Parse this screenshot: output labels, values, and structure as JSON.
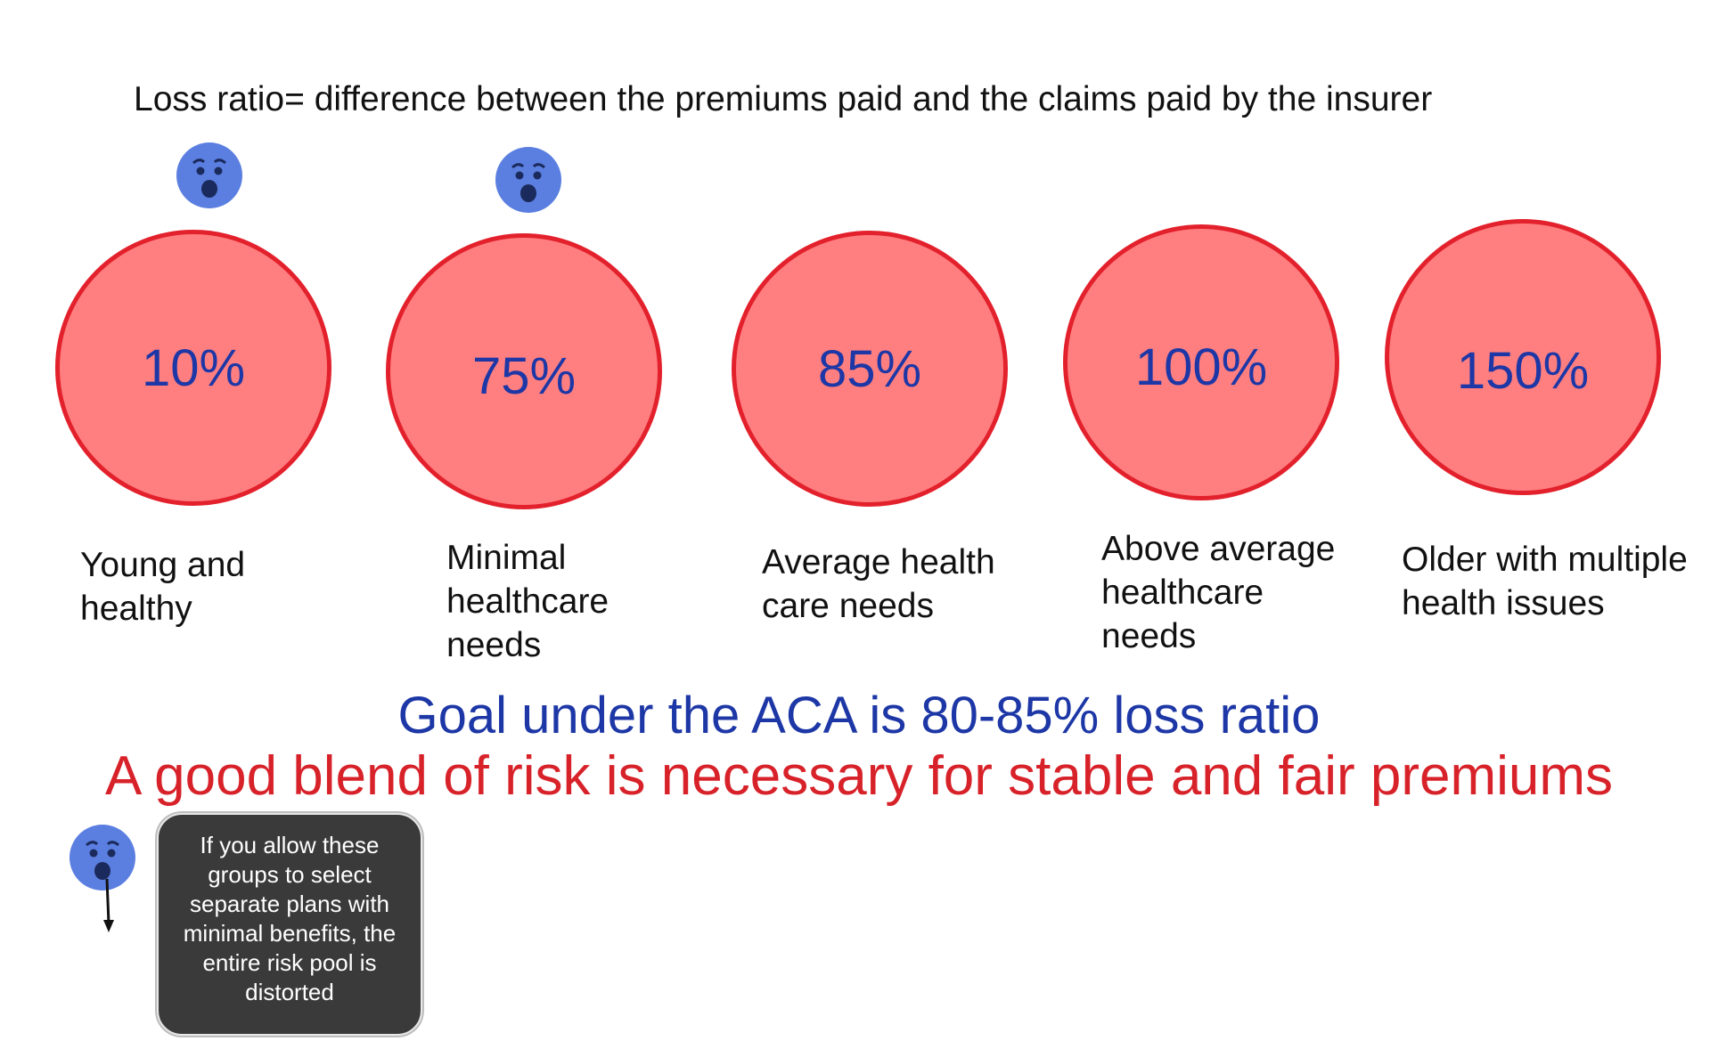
{
  "definition": "Loss ratio= difference between the premiums paid and the claims paid by the insurer",
  "groups": [
    {
      "percent": "10%",
      "label": "Young and\nhealthy",
      "worried": true
    },
    {
      "percent": "75%",
      "label": "Minimal\nhealthcare\nneeds",
      "worried": true
    },
    {
      "percent": "85%",
      "label": "Average health\ncare needs",
      "worried": false
    },
    {
      "percent": "100%",
      "label": "Above average\nhealthcare\nneeds",
      "worried": false
    },
    {
      "percent": "150%",
      "label": "Older with multiple\nhealth issues",
      "worried": false
    }
  ],
  "goal": "Goal under the ACA is 80-85% loss ratio",
  "blend": "A good blend of risk is necessary for stable and fair premiums",
  "callout": "If you allow these\ngroups to select\nseparate plans with\nminimal benefits, the\nentire risk pool is\ndistorted",
  "colors": {
    "circle_fill": "#ff7f80",
    "circle_border": "#e3212c",
    "percent_text": "#1d37a6",
    "goal_text": "#1d37a6",
    "blend_text": "#d8222a",
    "callout_bg": "#3a3a3a",
    "face": "#5b7fe0"
  },
  "icons": {
    "face": "worried-face-icon",
    "arrow": "arrow-down-icon"
  }
}
